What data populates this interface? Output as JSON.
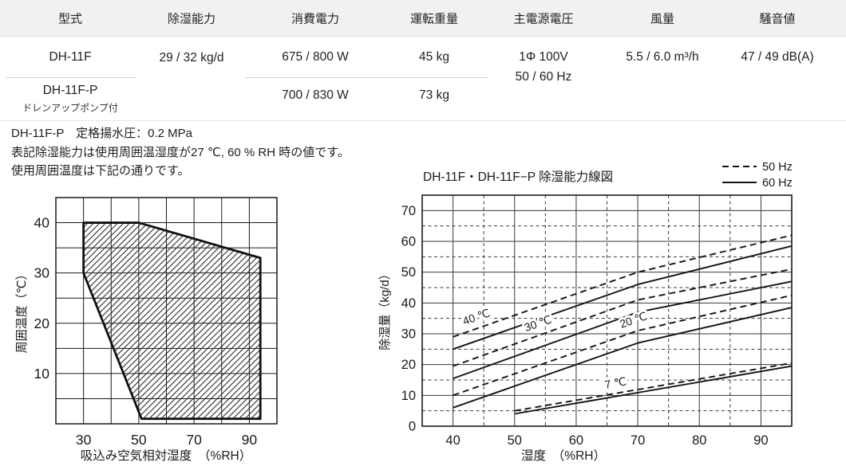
{
  "table": {
    "headers": [
      "型式",
      "除湿能力",
      "消費電力",
      "運転重量",
      "主電源電圧",
      "風量",
      "騒音値"
    ],
    "rows": [
      {
        "model": "DH-11F",
        "capacity": "29 / 32 kg/d",
        "power": "675 / 800 W",
        "weight": "45 kg",
        "voltage_line1": "1Φ 100V",
        "voltage_line2": "50 / 60 Hz",
        "airflow": "5.5 / 6.0 m³/h",
        "noise": "47 / 49 dB(A)"
      },
      {
        "model": "DH-11F-P",
        "model_sub": "ドレンアップポンプ付",
        "power": "700 / 830 W",
        "weight": "73 kg"
      }
    ]
  },
  "notes": [
    "DH-11F-P　定格揚水圧：0.2 MPa",
    "表記除湿能力は使用周囲温湿度が27 ℃, 60 % RH 時の値です。",
    "使用周囲温度は下記の通りです。"
  ],
  "colors": {
    "text": "#1a1a1a",
    "grid": "#333333",
    "header_bg": "#f1f1f2"
  },
  "chart_data": [
    {
      "id": "operating-range",
      "type": "area",
      "xlabel": "吸込み空気相対湿度　（%RH）",
      "ylabel": "周囲温度（℃）",
      "x": {
        "min": 20,
        "max": 100,
        "grid_step": 10,
        "ticks": [
          30,
          50,
          70,
          90
        ]
      },
      "y": {
        "min": 0,
        "max": 45,
        "grid_step": 5,
        "ticks": [
          10,
          20,
          30,
          40
        ]
      },
      "polygon": [
        [
          30,
          40
        ],
        [
          50,
          40
        ],
        [
          94,
          33
        ],
        [
          94,
          1
        ],
        [
          51,
          1
        ],
        [
          30,
          30
        ]
      ]
    },
    {
      "id": "capacity-curves",
      "type": "line",
      "title": "DH-11F・DH-11F−P 除湿能力線図",
      "xlabel": "湿度　（%RH）",
      "ylabel": "除湿量（kg/d）",
      "x": {
        "min": 35,
        "max": 95,
        "solid": [
          40,
          50,
          60,
          70,
          80,
          90
        ],
        "dashed": [
          45,
          55,
          65,
          75,
          85
        ],
        "ticks": [
          40,
          50,
          60,
          70,
          80,
          90
        ]
      },
      "y": {
        "min": 0,
        "max": 75,
        "solid": [
          10,
          20,
          30,
          40,
          50,
          60,
          70
        ],
        "dashed": [
          5,
          15,
          25,
          35,
          45,
          55,
          65
        ],
        "ticks": [
          0,
          10,
          20,
          30,
          40,
          50,
          60,
          70
        ]
      },
      "legend": [
        {
          "label": "50 Hz",
          "style": "dashed"
        },
        {
          "label": "60 Hz",
          "style": "solid"
        }
      ],
      "series": [
        {
          "name": "40℃ 50Hz",
          "style": "dashed",
          "points": [
            [
              40,
              29
            ],
            [
              70,
              50
            ],
            [
              95,
              62
            ]
          ]
        },
        {
          "name": "40℃ 60Hz",
          "style": "solid",
          "points": [
            [
              40,
              25
            ],
            [
              70,
              46
            ],
            [
              95,
              58.5
            ]
          ]
        },
        {
          "name": "30℃ 50Hz",
          "style": "dashed",
          "points": [
            [
              40,
              19.5
            ],
            [
              70,
              41
            ],
            [
              95,
              51
            ]
          ]
        },
        {
          "name": "30℃ 60Hz",
          "style": "solid",
          "points": [
            [
              40,
              15.5
            ],
            [
              70,
              37
            ],
            [
              95,
              47
            ]
          ]
        },
        {
          "name": "20℃ 50Hz",
          "style": "dashed",
          "points": [
            [
              40,
              10
            ],
            [
              70,
              31
            ],
            [
              95,
              42.5
            ]
          ]
        },
        {
          "name": "20℃ 60Hz",
          "style": "solid",
          "points": [
            [
              40,
              6
            ],
            [
              70,
              27
            ],
            [
              95,
              38.5
            ]
          ]
        },
        {
          "name": "7℃ 50Hz",
          "style": "dashed",
          "points": [
            [
              50,
              5
            ],
            [
              95,
              20.5
            ]
          ]
        },
        {
          "name": "7℃ 60Hz",
          "style": "solid",
          "points": [
            [
              50,
              4
            ],
            [
              95,
              19.5
            ]
          ]
        }
      ],
      "curve_labels": [
        {
          "text": "40 ℃",
          "x": 44,
          "y": 34.3,
          "angle": -19
        },
        {
          "text": "30 ℃",
          "x": 54,
          "y": 32.2,
          "angle": -19
        },
        {
          "text": "20 ℃",
          "x": 69.5,
          "y": 33.3,
          "angle": -19
        },
        {
          "text": "7 ℃",
          "x": 66.5,
          "y": 12.8,
          "angle": -10
        }
      ]
    }
  ]
}
